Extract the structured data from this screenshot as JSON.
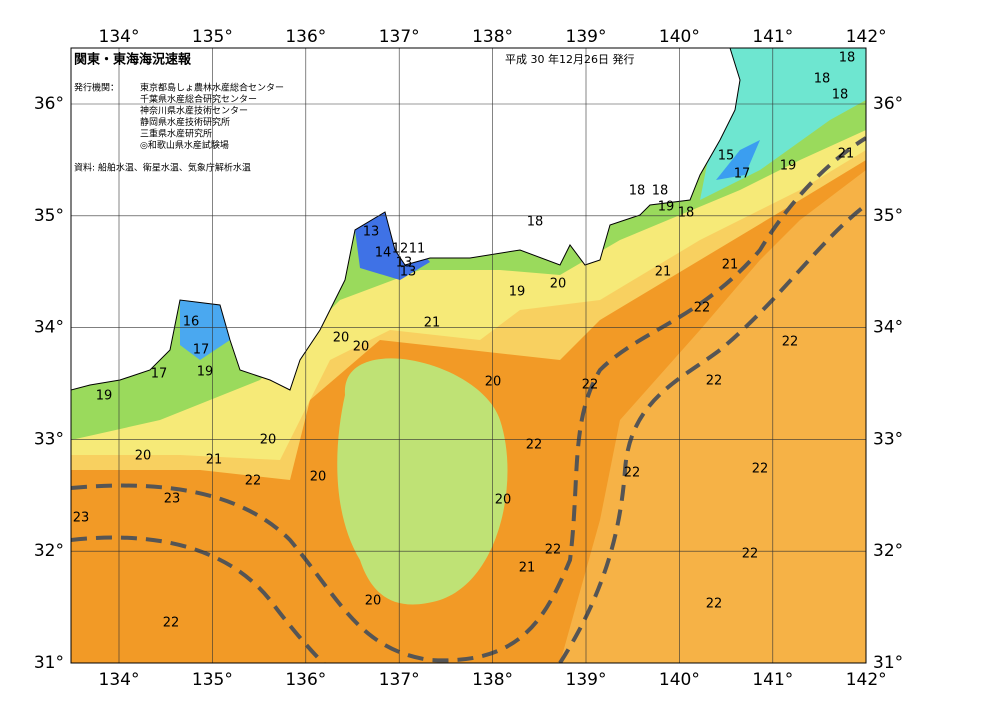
{
  "header": {
    "title": "関東・東海海況速報",
    "date": "平成 30 年12月26日 発行"
  },
  "publisher": {
    "label": "発行機関：",
    "agencies": [
      "東京都島しょ農林水産総合センター",
      "千葉県水産総合研究センター",
      "神奈川県水産技術センター",
      "静岡県水産技術研究所",
      "三重県水産研究所",
      "◎和歌山県水産試験場"
    ]
  },
  "source": "資料: 船舶水温、衛星水温、気象庁解析水温",
  "axes": {
    "lon_top": [
      "134°",
      "135°",
      "136°",
      "137°",
      "138°",
      "139°",
      "140°",
      "141°",
      "142°"
    ],
    "lon_bottom": [
      "134°",
      "135°",
      "136°",
      "137°",
      "138°",
      "139°",
      "140°",
      "141°",
      "142°"
    ],
    "lat_left": [
      "36°",
      "35°",
      "34°",
      "33°",
      "32°",
      "31°"
    ],
    "lat_right": [
      "36°",
      "35°",
      "34°",
      "33°",
      "32°",
      "31°"
    ]
  },
  "contours": [
    18,
    18,
    18,
    21,
    19,
    15,
    17,
    18,
    18,
    19,
    18,
    18,
    21,
    21,
    20,
    19,
    22,
    22,
    21,
    20,
    20,
    20,
    22,
    22,
    17,
    16,
    17,
    19,
    19,
    20,
    20,
    21,
    22,
    22,
    22,
    22,
    23,
    23,
    20,
    20,
    22,
    22,
    21,
    20,
    22,
    22,
    13,
    14,
    12,
    11,
    13,
    13
  ]
}
